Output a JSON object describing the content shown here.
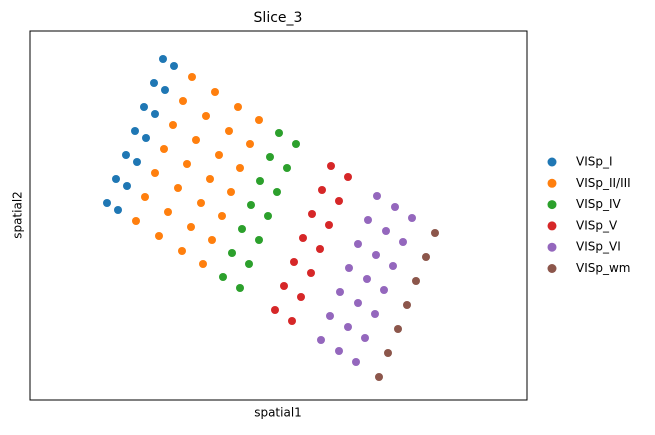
{
  "chart_data": {
    "type": "scatter",
    "title": "Slice_3",
    "x_label": "spatial1",
    "y_label": "spatial2",
    "xlim": [
      0,
      497
    ],
    "ylim": [
      369,
      0
    ],
    "legend": "right",
    "series": [
      {
        "name": "VISp_I",
        "color": "#1f77b4",
        "x": [
          133,
          124,
          114,
          105,
          96,
          86,
          77,
          144,
          135,
          125,
          116,
          107,
          97,
          88
        ],
        "y": [
          28,
          52,
          76,
          100,
          124,
          148,
          172,
          35,
          59,
          83,
          107,
          131,
          155,
          179
        ]
      },
      {
        "name": "VISp_II/III",
        "color": "#ff7f0e",
        "x": [
          162,
          153,
          143,
          134,
          125,
          115,
          106,
          185,
          176,
          166,
          157,
          148,
          138,
          129,
          208,
          199,
          189,
          180,
          171,
          161,
          152,
          229,
          220,
          210,
          201,
          192,
          182,
          173
        ],
        "y": [
          46,
          70,
          94,
          118,
          142,
          166,
          190,
          61,
          85,
          109,
          133,
          157,
          181,
          205,
          76,
          100,
          124,
          148,
          172,
          196,
          220,
          89,
          113,
          137,
          161,
          185,
          209,
          233
        ]
      },
      {
        "name": "VISp_IV",
        "color": "#2ca02c",
        "x": [
          249,
          240,
          230,
          221,
          212,
          202,
          193,
          266,
          257,
          247,
          238,
          229,
          219,
          210
        ],
        "y": [
          102,
          126,
          150,
          174,
          198,
          222,
          246,
          113,
          137,
          161,
          185,
          209,
          233,
          257
        ]
      },
      {
        "name": "VISp_V",
        "color": "#d62728",
        "x": [
          301,
          292,
          282,
          273,
          264,
          254,
          245,
          318,
          309,
          299,
          290,
          281,
          271,
          262
        ],
        "y": [
          135,
          159,
          183,
          207,
          231,
          255,
          279,
          146,
          170,
          194,
          218,
          242,
          266,
          290
        ]
      },
      {
        "name": "VISp_VI",
        "color": "#9467bd",
        "x": [
          347,
          338,
          328,
          319,
          310,
          300,
          291,
          365,
          356,
          346,
          337,
          328,
          318,
          309,
          382,
          373,
          363,
          354,
          345,
          335,
          326
        ],
        "y": [
          165,
          189,
          213,
          237,
          261,
          285,
          309,
          176,
          200,
          224,
          248,
          272,
          296,
          320,
          187,
          211,
          235,
          259,
          283,
          307,
          331
        ]
      },
      {
        "name": "VISp_wm",
        "color": "#8c564b",
        "x": [
          405,
          396,
          386,
          377,
          368,
          358,
          349
        ],
        "y": [
          202,
          226,
          250,
          274,
          298,
          322,
          346
        ]
      }
    ]
  }
}
